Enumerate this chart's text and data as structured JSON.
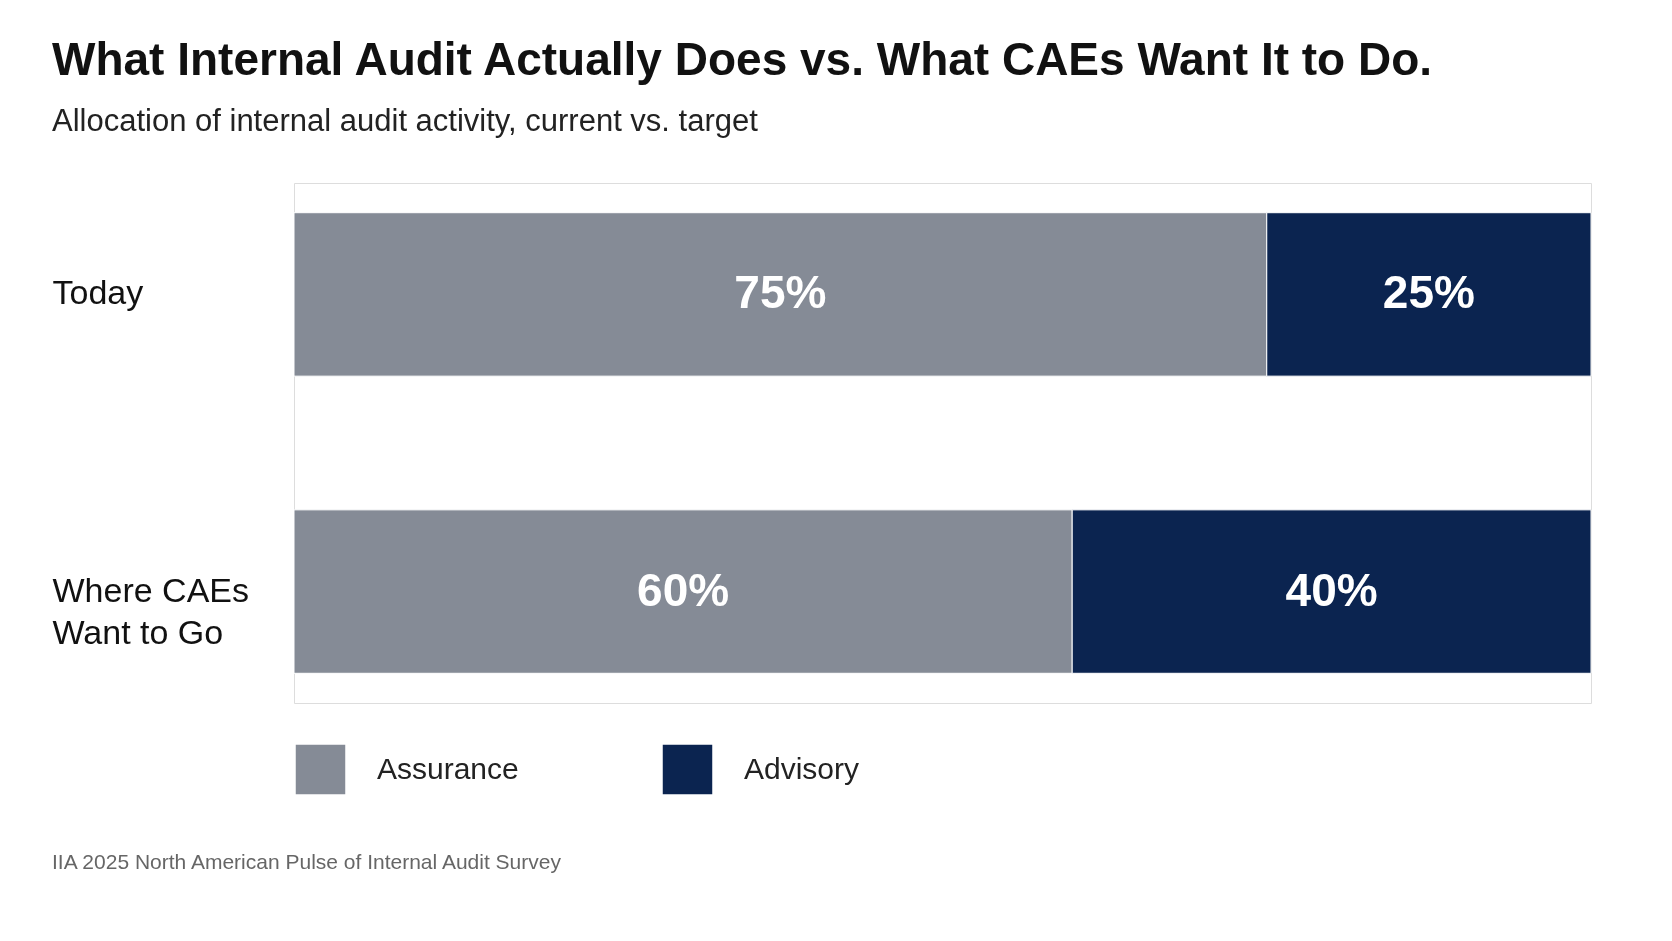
{
  "chart_data": {
    "type": "bar",
    "orientation": "horizontal",
    "stacked": true,
    "title": "What Internal Audit Actually Does vs. What CAEs Want It to Do.",
    "subtitle": "Allocation of internal audit activity, current vs. target",
    "categories": [
      "Today",
      "Where CAEs Want to Go"
    ],
    "series": [
      {
        "name": "Assurance",
        "color": "#858b96",
        "values": [
          75,
          60
        ],
        "value_labels": [
          "75%",
          "60%"
        ]
      },
      {
        "name": "Advisory",
        "color": "#0b2450",
        "values": [
          25,
          40
        ],
        "value_labels": [
          "25%",
          "40%"
        ]
      }
    ],
    "legend": "bottom",
    "annotations": [
      "IIA 2025 North American Pulse of Internal Audit Survey"
    ]
  }
}
